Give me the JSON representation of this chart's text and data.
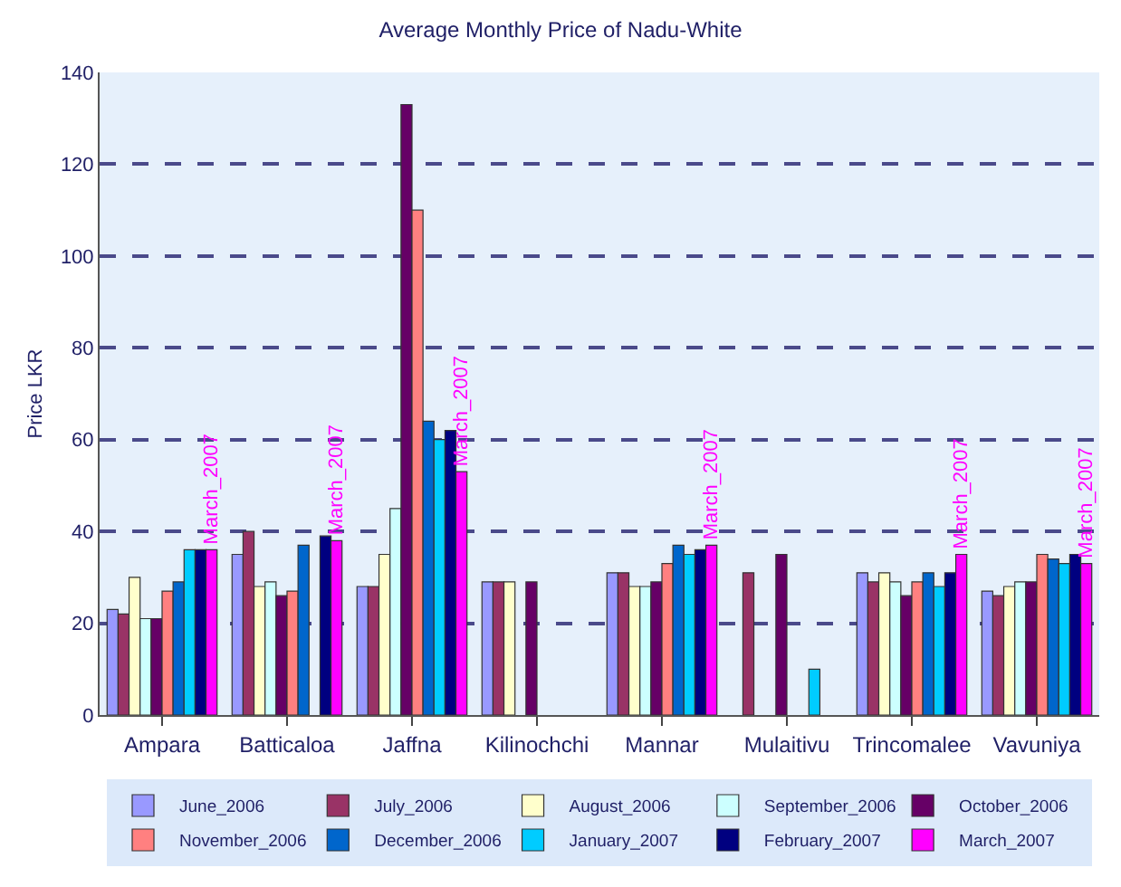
{
  "chart_data": {
    "type": "bar",
    "title": "Average Monthly Price of Nadu-White",
    "ylabel": "Price LKR",
    "categories": [
      "Ampara",
      "Batticaloa",
      "Jaffna",
      "Kilinochchi",
      "Mannar",
      "Mulaitivu",
      "Trincomalee",
      "Vavuniya"
    ],
    "series": [
      {
        "name": "June_2006",
        "color": "#9999ff",
        "values": [
          23,
          35,
          28,
          29,
          31,
          null,
          31,
          27
        ]
      },
      {
        "name": "July_2006",
        "color": "#993366",
        "values": [
          22,
          40,
          28,
          29,
          31,
          31,
          29,
          26
        ]
      },
      {
        "name": "August_2006",
        "color": "#ffffcc",
        "values": [
          30,
          28,
          35,
          29,
          28,
          null,
          31,
          28
        ]
      },
      {
        "name": "September_2006",
        "color": "#ccffff",
        "values": [
          21,
          29,
          45,
          null,
          28,
          null,
          29,
          29
        ]
      },
      {
        "name": "October_2006",
        "color": "#660066",
        "values": [
          21,
          26,
          133,
          29,
          29,
          35,
          26,
          29
        ]
      },
      {
        "name": "November_2006",
        "color": "#ff8080",
        "values": [
          27,
          27,
          110,
          null,
          33,
          null,
          29,
          35
        ]
      },
      {
        "name": "December_2006",
        "color": "#0066cc",
        "values": [
          29,
          37,
          64,
          null,
          37,
          null,
          31,
          34
        ]
      },
      {
        "name": "January_2007",
        "color": "#00ccff",
        "values": [
          36,
          null,
          60,
          null,
          35,
          10,
          28,
          33
        ]
      },
      {
        "name": "February_2007",
        "color": "#000080",
        "values": [
          36,
          39,
          62,
          null,
          36,
          null,
          31,
          35
        ]
      },
      {
        "name": "March_2007",
        "color": "#ff00ff",
        "values": [
          36,
          38,
          53,
          null,
          37,
          null,
          35,
          33
        ],
        "value_labels": [
          "March_2007",
          "March_2007",
          "March_2007",
          null,
          "March_2007",
          null,
          "March_2007",
          "March_2007"
        ]
      }
    ],
    "ylim": [
      0,
      140
    ],
    "yticks": [
      0,
      20,
      40,
      60,
      80,
      100,
      120,
      140
    ],
    "grid": "y",
    "legend": "bottom"
  }
}
